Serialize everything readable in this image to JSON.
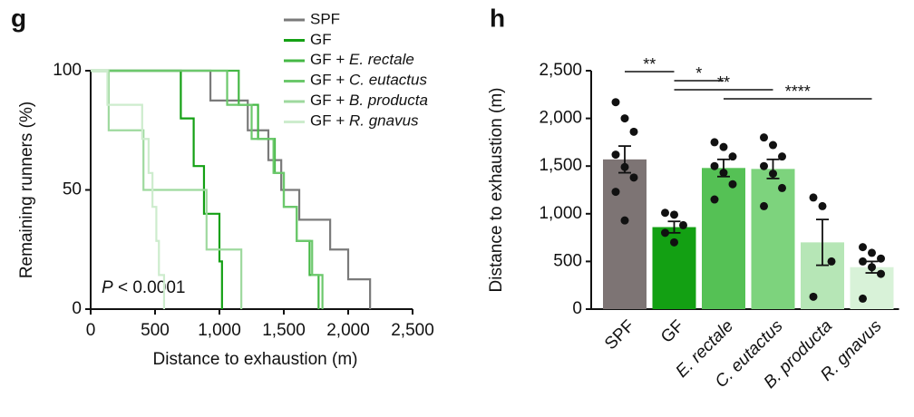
{
  "chart_data": [
    {
      "type": "step",
      "panel_label": "g",
      "xlabel": "Distance to exhaustion (m)",
      "ylabel": "Remaining runners (%)",
      "xlim": [
        0,
        2500
      ],
      "ylim": [
        0,
        100
      ],
      "xticks": [
        0,
        500,
        {
          "value": 1000,
          "label": "1,000"
        },
        {
          "value": 1500,
          "label": "1,500"
        },
        {
          "value": 2000,
          "label": "2,000"
        },
        {
          "value": 2500,
          "label": "2,500"
        }
      ],
      "yticks": [
        0,
        50,
        100
      ],
      "legend": "top",
      "annotation": "P < 0.0001",
      "series": [
        {
          "name": "SPF",
          "color": "#7a7a7a",
          "italic": false,
          "x": [
            0,
            930,
            1220,
            1380,
            1480,
            1620,
            1860,
            2000,
            2170
          ],
          "values": [
            100,
            87.5,
            75,
            62.5,
            50,
            37.5,
            25,
            12.5,
            0
          ]
        },
        {
          "name": "GF",
          "color": "#14a014",
          "italic": false,
          "x": [
            0,
            700,
            800,
            880,
            1000,
            1020
          ],
          "values": [
            100,
            80,
            60,
            40,
            20,
            0
          ]
        },
        {
          "name": "GF + E. rectale",
          "color": "#45b845",
          "italic": true,
          "x": [
            0,
            1150,
            1300,
            1430,
            1500,
            1600,
            1700,
            1770
          ],
          "values": [
            100,
            85.7,
            71.4,
            57.1,
            42.9,
            28.6,
            14.3,
            0
          ]
        },
        {
          "name": "GF + C. eutactus",
          "color": "#6cc86c",
          "italic": true,
          "x": [
            0,
            1060,
            1250,
            1420,
            1500,
            1600,
            1720,
            1800
          ],
          "values": [
            100,
            85.7,
            71.4,
            57.1,
            42.9,
            28.6,
            14.3,
            0
          ]
        },
        {
          "name": "GF + B. producta",
          "color": "#9ed99e",
          "italic": true,
          "x": [
            0,
            140,
            410,
            900,
            1170
          ],
          "values": [
            100,
            75,
            50,
            25,
            0
          ]
        },
        {
          "name": "GF + R. gnavus",
          "color": "#cdeccd",
          "italic": true,
          "x": [
            0,
            130,
            400,
            450,
            480,
            510,
            530,
            570
          ],
          "values": [
            100,
            85.7,
            71.4,
            57.1,
            42.9,
            28.6,
            14.3,
            0
          ]
        }
      ]
    },
    {
      "type": "bar",
      "panel_label": "h",
      "ylabel": "Distance to exhaustion (m)",
      "ylim": [
        0,
        2500
      ],
      "yticks": [
        0,
        500,
        {
          "value": 1000,
          "label": "1,000"
        },
        {
          "value": 1500,
          "label": "1,500"
        },
        {
          "value": 2000,
          "label": "2,000"
        },
        {
          "value": 2500,
          "label": "2,500"
        }
      ],
      "categories": [
        "SPF",
        "GF",
        "E. rectale",
        "C. eutactus",
        "B. producta",
        "R. gnavus"
      ],
      "italic": [
        false,
        false,
        true,
        true,
        true,
        true
      ],
      "colors": [
        "#7d7474",
        "#13a013",
        "#55c155",
        "#7dd37d",
        "#b6e6b6",
        "#d8f2d8"
      ],
      "values": [
        1570,
        860,
        1480,
        1470,
        700,
        440
      ],
      "errors": [
        140,
        60,
        90,
        100,
        240,
        60
      ],
      "points": [
        [
          2170,
          2000,
          1860,
          1620,
          1490,
          1380,
          1230,
          930
        ],
        [
          1010,
          990,
          880,
          800,
          700
        ],
        [
          1750,
          1700,
          1600,
          1500,
          1430,
          1310,
          1150
        ],
        [
          1800,
          1720,
          1600,
          1500,
          1420,
          1270,
          1080
        ],
        [
          1170,
          1080,
          500,
          130
        ],
        [
          650,
          590,
          530,
          500,
          440,
          370,
          110
        ]
      ],
      "significance": [
        {
          "label": "**",
          "from": 0,
          "to": 1
        },
        {
          "label": "*",
          "from": 1,
          "to": 2
        },
        {
          "label": "**",
          "from": 1,
          "to": 3
        },
        {
          "label": "****",
          "from": 2,
          "to": 5
        }
      ]
    }
  ]
}
